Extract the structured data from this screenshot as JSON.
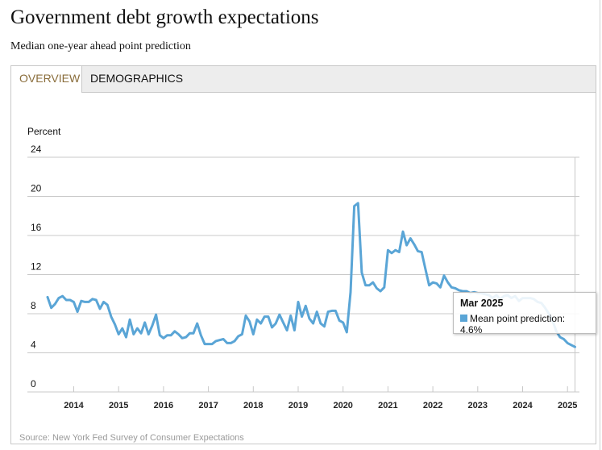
{
  "header": {
    "title": "Government debt growth expectations",
    "subtitle": "Median one-year ahead point prediction"
  },
  "tabs": [
    {
      "label": "OVERVIEW",
      "active": true
    },
    {
      "label": "DEMOGRAPHICS",
      "active": false
    }
  ],
  "source": "Source: New York Fed Survey of Consumer Expectations",
  "tooltip": {
    "title": "Mar 2025",
    "series_label": "Mean point prediction: 4.6%"
  },
  "colors": {
    "line": "#5aa5d6",
    "active_tab_text": "#8a6d3b"
  },
  "chart_data": {
    "type": "line",
    "title": "Government debt growth expectations",
    "subtitle": "Median one-year ahead point prediction",
    "ylabel": "Percent",
    "xlabel": "",
    "ylim": [
      0,
      24
    ],
    "yticks": [
      0,
      4,
      8,
      12,
      16,
      20,
      24
    ],
    "xticks": [
      "2014",
      "2015",
      "2016",
      "2017",
      "2018",
      "2019",
      "2020",
      "2021",
      "2022",
      "2023",
      "2024",
      "2025"
    ],
    "grid": true,
    "x_start": "2013-06",
    "x_end": "2025-03",
    "frequency": "monthly",
    "series": [
      {
        "name": "Mean point prediction",
        "values": [
          9.7,
          8.6,
          9.0,
          9.6,
          9.8,
          9.4,
          9.4,
          9.2,
          8.2,
          9.3,
          9.2,
          9.2,
          9.5,
          9.4,
          8.5,
          9.2,
          8.9,
          7.7,
          6.9,
          5.9,
          6.5,
          5.6,
          7.4,
          5.9,
          6.5,
          6.0,
          7.1,
          5.9,
          6.8,
          7.9,
          5.8,
          5.5,
          5.8,
          5.8,
          6.2,
          5.9,
          5.5,
          5.6,
          6.0,
          6.0,
          7.0,
          5.8,
          4.9,
          4.9,
          4.9,
          5.2,
          5.3,
          5.4,
          5.0,
          5.0,
          5.2,
          5.7,
          5.9,
          7.8,
          7.2,
          5.9,
          7.4,
          7.0,
          7.7,
          7.7,
          6.6,
          7.0,
          7.9,
          7.1,
          6.3,
          7.8,
          6.3,
          9.2,
          7.7,
          8.8,
          7.5,
          7.0,
          8.2,
          7.0,
          6.7,
          8.2,
          8.3,
          8.3,
          7.3,
          7.1,
          6.1,
          10.2,
          19.0,
          19.3,
          12.2,
          10.9,
          10.9,
          11.2,
          10.6,
          10.3,
          10.7,
          14.5,
          14.2,
          14.5,
          14.3,
          16.4,
          15.0,
          15.7,
          15.1,
          14.4,
          14.3,
          12.6,
          10.9,
          11.2,
          11.1,
          10.7,
          11.9,
          11.2,
          10.7,
          10.6,
          10.4,
          10.3,
          10.3,
          10.1,
          10.2,
          10.1,
          10.1,
          10.0,
          9.9,
          9.6,
          9.9,
          9.5,
          9.8,
          9.9,
          9.6,
          9.8,
          9.3,
          9.6,
          9.6,
          9.6,
          9.5,
          9.2,
          9.1,
          8.6,
          8.0,
          7.3,
          6.2,
          5.6,
          5.4,
          5.0,
          4.8,
          4.6
        ]
      }
    ],
    "highlight": {
      "x": "Mar 2025",
      "value": 4.6
    }
  }
}
